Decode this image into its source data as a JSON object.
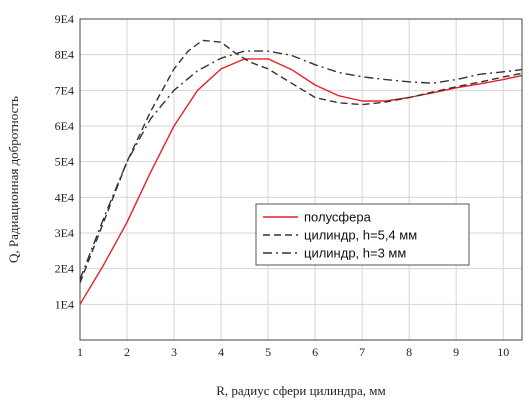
{
  "chart_data": {
    "type": "line",
    "title": "",
    "xlabel": "R, радиус сфери цилиндра, мм",
    "ylabel": "Q, Радиационная добротность",
    "xlim": [
      1,
      10.4
    ],
    "ylim": [
      0,
      90000
    ],
    "xticks": [
      "1",
      "2",
      "3",
      "4",
      "5",
      "6",
      "7",
      "8",
      "9",
      "10"
    ],
    "yticks": [
      "1E4",
      "2E4",
      "3E4",
      "4E4",
      "5E4",
      "6E4",
      "7E4",
      "8E4",
      "9E4"
    ],
    "grid": true,
    "legend_position": "center-right",
    "series": [
      {
        "name": "полусфера",
        "color": "#e8202a",
        "dash": "solid",
        "x": [
          1,
          1.5,
          2,
          2.5,
          3,
          3.5,
          4,
          4.5,
          5,
          5.5,
          6,
          6.5,
          7,
          7.5,
          8,
          8.5,
          9,
          9.5,
          10,
          10.4
        ],
        "y": [
          10000,
          21000,
          33000,
          47000,
          60000,
          70000,
          76000,
          78800,
          78800,
          75800,
          71500,
          68500,
          67000,
          67000,
          68000,
          69300,
          70700,
          71800,
          73000,
          74200
        ]
      },
      {
        "name": "цилиндр, h=5,4 мм",
        "color": "#333333",
        "dash": "dashed",
        "x": [
          1,
          1.5,
          2,
          2.5,
          3,
          3.3,
          3.6,
          4,
          4.3,
          4.6,
          5,
          5.5,
          6,
          6.5,
          7,
          7.5,
          8,
          8.5,
          9,
          9.5,
          10,
          10.4
        ],
        "y": [
          16000,
          33000,
          50000,
          64000,
          76000,
          81000,
          84000,
          83500,
          80500,
          78000,
          76000,
          72000,
          68000,
          66500,
          66000,
          66700,
          68000,
          69500,
          71000,
          72300,
          73700,
          74800
        ]
      },
      {
        "name": "цилиндр, h=3 мм",
        "color": "#333333",
        "dash": "dashdot",
        "x": [
          1,
          1.5,
          2,
          2.5,
          3,
          3.5,
          4,
          4.5,
          5,
          5.5,
          6,
          6.5,
          7,
          7.5,
          8,
          8.5,
          9,
          9.5,
          10,
          10.4
        ],
        "y": [
          17000,
          34000,
          50000,
          62000,
          70000,
          75500,
          79000,
          81000,
          81000,
          79800,
          77200,
          75000,
          73800,
          73000,
          72400,
          72000,
          73000,
          74500,
          75200,
          75800
        ]
      }
    ]
  }
}
